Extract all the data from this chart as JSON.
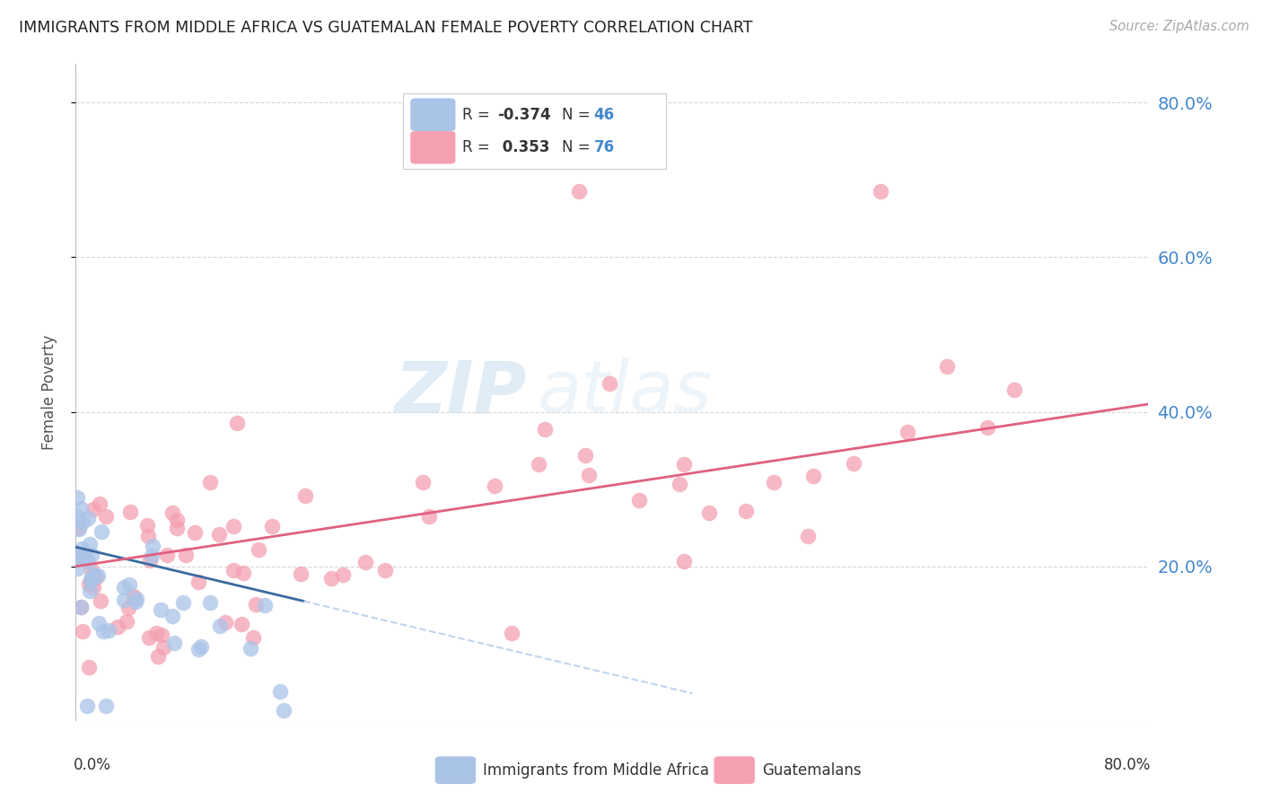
{
  "title": "IMMIGRANTS FROM MIDDLE AFRICA VS GUATEMALAN FEMALE POVERTY CORRELATION CHART",
  "source": "Source: ZipAtlas.com",
  "ylabel": "Female Poverty",
  "watermark_zip": "ZIP",
  "watermark_atlas": "atlas",
  "legend_blue_R": "-0.374",
  "legend_blue_N": "46",
  "legend_pink_R": "0.353",
  "legend_pink_N": "76",
  "ytick_labels": [
    "20.0%",
    "40.0%",
    "60.0%",
    "80.0%"
  ],
  "ytick_vals": [
    0.2,
    0.4,
    0.6,
    0.8
  ],
  "xmin": 0.0,
  "xmax": 0.8,
  "ymin": 0.0,
  "ymax": 0.85,
  "blue_scatter_color": "#aac4e8",
  "pink_scatter_color": "#f4a0b0",
  "blue_line_color": "#3a6aa0",
  "pink_line_color": "#e06080",
  "dashed_line_color": "#c0d4ee",
  "grid_color": "#d8d8d8",
  "right_axis_color": "#4488cc",
  "background_color": "#ffffff",
  "title_color": "#222222",
  "source_color": "#aaaaaa",
  "ylabel_color": "#555555",
  "legend_border_color": "#cccccc",
  "legend_text_color": "#333333",
  "bottom_label_color": "#333333"
}
